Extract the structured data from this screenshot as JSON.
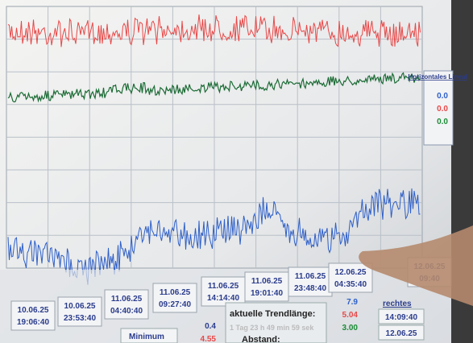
{
  "legend": {
    "title": "Horizontales Lineal",
    "values": [
      "0.0",
      "0.0",
      "0.0"
    ]
  },
  "time_labels": [
    {
      "date": "10.06.25",
      "time": "19:06:40"
    },
    {
      "date": "10.06.25",
      "time": "23:53:40"
    },
    {
      "date": "11.06.25",
      "time": "04:40:40"
    },
    {
      "date": "11.06.25",
      "time": "09:27:40"
    },
    {
      "date": "11.06.25",
      "time": "14:14:40"
    },
    {
      "date": "11.06.25",
      "time": "19:01:40"
    },
    {
      "date": "11.06.25",
      "time": "23:48:40"
    },
    {
      "date": "12.06.25",
      "time": "04:35:40"
    },
    {
      "date": "12.06.25",
      "time": "09:40"
    }
  ],
  "bottom": {
    "minimum_label": "Minimum",
    "minimum_value": "0.4",
    "minimum_value_2": "4.55",
    "trend_label": "aktuelle Trendlänge:",
    "trend_value": "1 Tag 23 h 49 min 59 sek",
    "distance_label": "Abstand:",
    "right_values": [
      "7.9",
      "5.04",
      "3.00"
    ],
    "right_label": "rechtes",
    "right_time": "14:09:40",
    "right_date": "12.06.25"
  }
}
